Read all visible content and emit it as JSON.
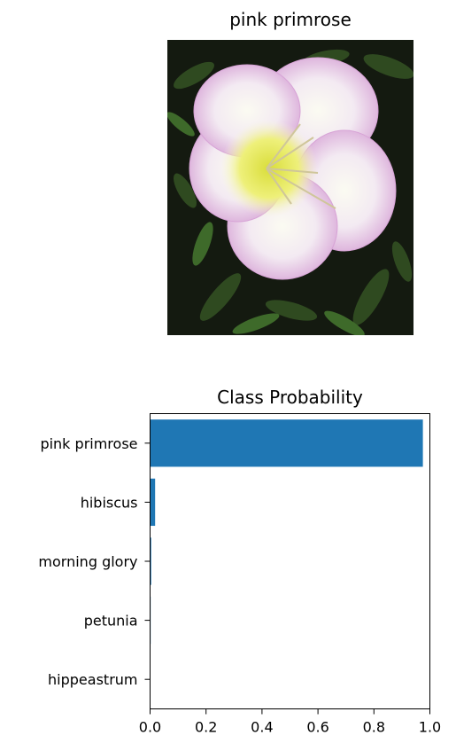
{
  "image_panel": {
    "title": "pink primrose",
    "image_subject": "pink primrose flower photo"
  },
  "chart_data": {
    "type": "bar",
    "orientation": "horizontal",
    "title": "Class Probability",
    "xlabel": "",
    "ylabel": "",
    "categories": [
      "pink primrose",
      "hibiscus",
      "morning glory",
      "petunia",
      "hippeastrum"
    ],
    "values": [
      0.975,
      0.018,
      0.004,
      0.002,
      0.001
    ],
    "xlim": [
      0.0,
      1.0
    ],
    "xticks": [
      "0.0",
      "0.2",
      "0.4",
      "0.6",
      "0.8",
      "1.0"
    ],
    "bar_color": "#1f77b4",
    "grid": false
  }
}
